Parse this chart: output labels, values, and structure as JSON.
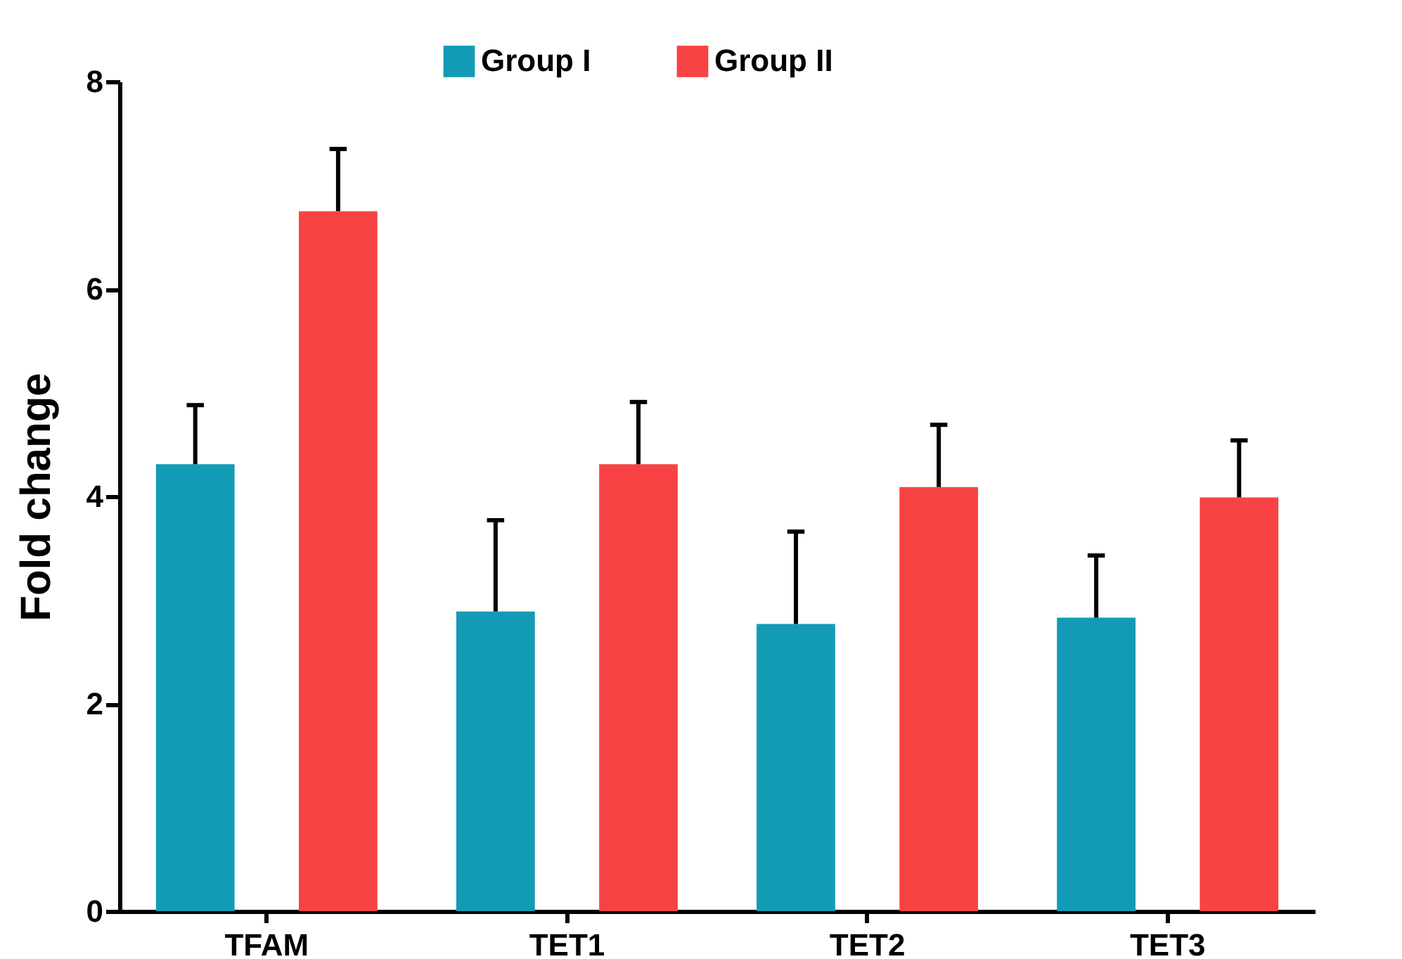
{
  "chart_data": {
    "type": "bar",
    "ylabel": "Fold change",
    "categories": [
      "TFAM",
      "TET1",
      "TET2",
      "TET3"
    ],
    "series": [
      {
        "name": "Group I",
        "color": "#139bb5",
        "values": [
          4.31,
          2.89,
          2.77,
          2.83
        ],
        "errors": [
          [
            4.31,
            4.88
          ],
          [
            2.89,
            3.77
          ],
          [
            2.77,
            3.66
          ],
          [
            2.83,
            3.43
          ]
        ]
      },
      {
        "name": "Group II",
        "color": "#f74343",
        "values": [
          6.75,
          4.31,
          4.09,
          3.99
        ],
        "errors": [
          [
            6.75,
            7.35
          ],
          [
            4.31,
            4.91
          ],
          [
            4.09,
            4.69
          ],
          [
            3.99,
            4.54
          ]
        ]
      }
    ],
    "ylim": [
      0,
      8
    ],
    "yticks": [
      0,
      2,
      4,
      6,
      8
    ],
    "grid": false,
    "legend": "top"
  }
}
